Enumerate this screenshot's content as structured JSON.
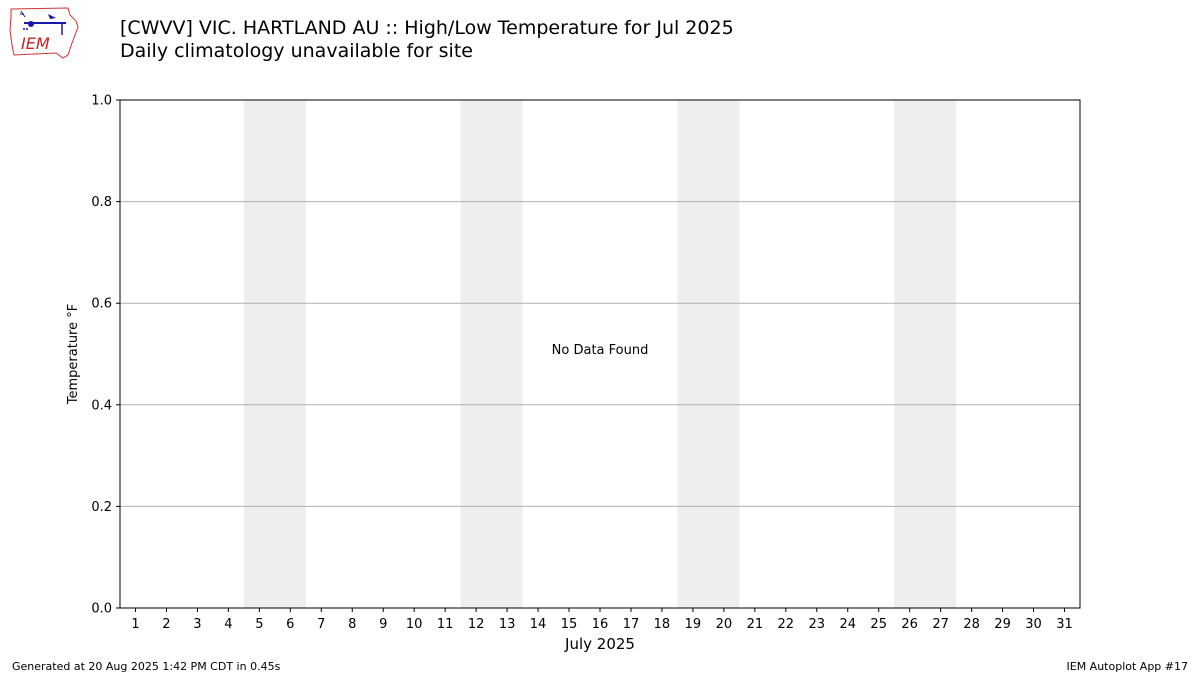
{
  "logo": {
    "text": "IEM"
  },
  "header": {
    "title": "[CWVV] VIC. HARTLAND AU :: High/Low Temperature for Jul 2025",
    "subtitle": "Daily climatology unavailable for site"
  },
  "chart_data": {
    "type": "bar",
    "title": "[CWVV] VIC. HARTLAND AU :: High/Low Temperature for Jul 2025",
    "subtitle": "Daily climatology unavailable for site",
    "xlabel": "July 2025",
    "ylabel": "Temperature °F",
    "categories": [
      "1",
      "2",
      "3",
      "4",
      "5",
      "6",
      "7",
      "8",
      "9",
      "10",
      "11",
      "12",
      "13",
      "14",
      "15",
      "16",
      "17",
      "18",
      "19",
      "20",
      "21",
      "22",
      "23",
      "24",
      "25",
      "26",
      "27",
      "28",
      "29",
      "30",
      "31"
    ],
    "series": [],
    "ylim": [
      0.0,
      1.0
    ],
    "yticks": [
      "0.0",
      "0.2",
      "0.4",
      "0.6",
      "0.8",
      "1.0"
    ],
    "weekend_shading": [
      [
        5,
        6
      ],
      [
        12,
        13
      ],
      [
        19,
        20
      ],
      [
        26,
        27
      ]
    ],
    "annotation": "No Data Found",
    "grid": true
  },
  "footer": {
    "generated": "Generated at 20 Aug 2025 1:42 PM CDT in 0.45s",
    "app": "IEM Autoplot App #17"
  }
}
